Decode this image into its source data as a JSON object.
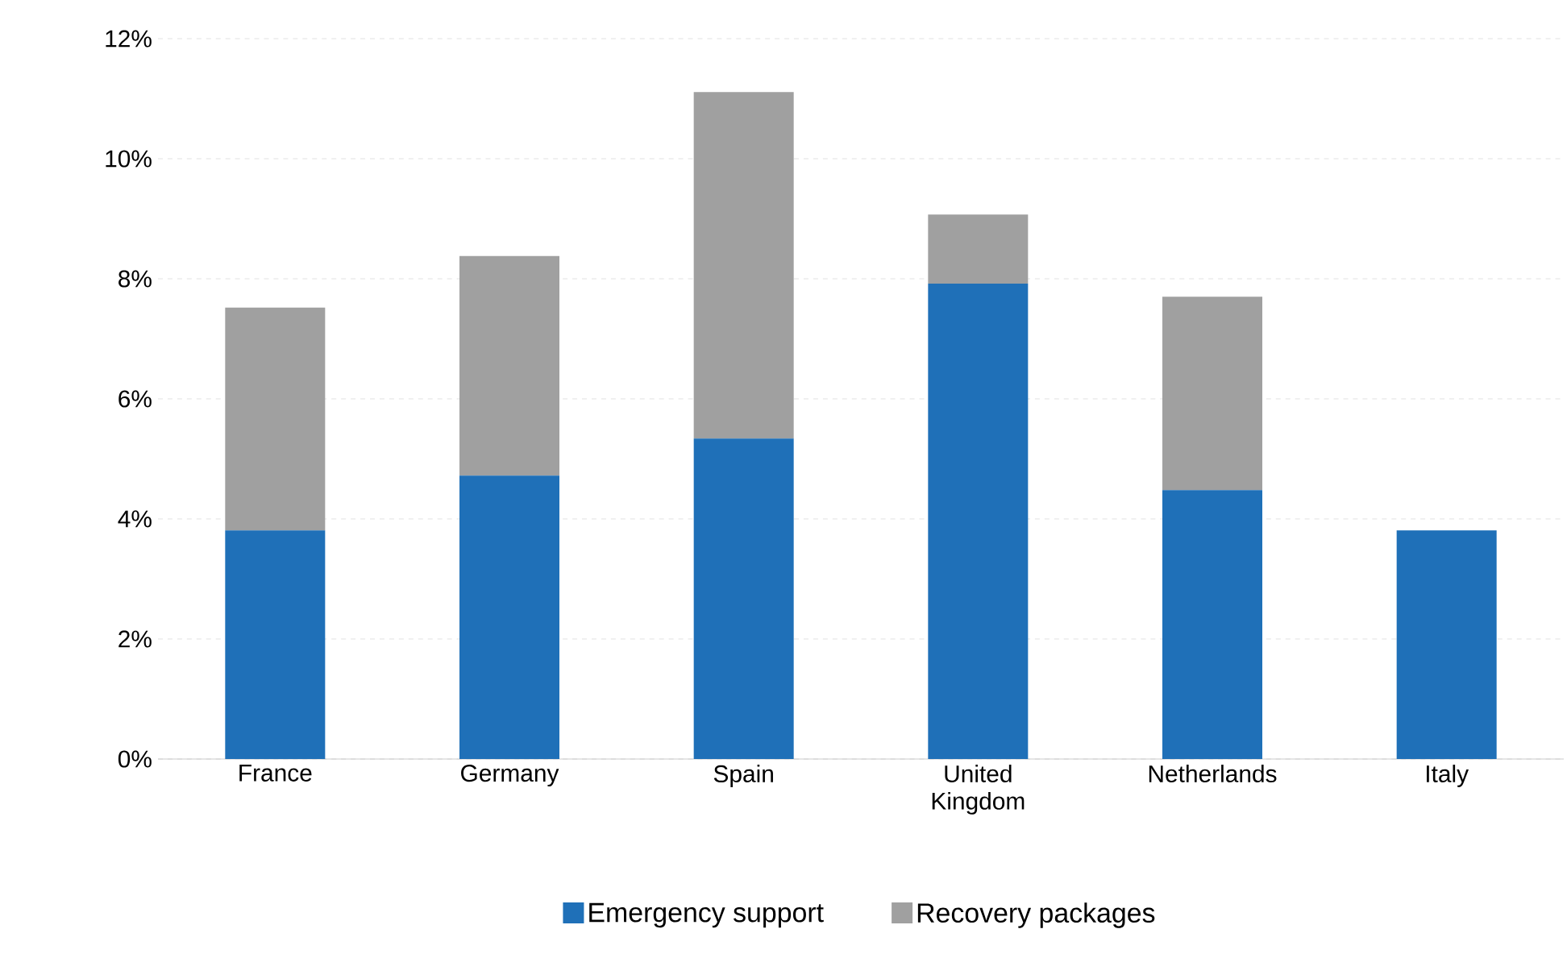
{
  "chart_data": {
    "type": "bar",
    "stacked": true,
    "categories": [
      "France",
      "Germany",
      "Spain",
      "United Kingdom",
      "Netherlands",
      "Italy"
    ],
    "series": [
      {
        "name": "Emergency support",
        "color": "#1f70b8",
        "values": [
          3.81,
          4.72,
          5.34,
          7.92,
          4.48,
          3.81
        ]
      },
      {
        "name": "Recovery packages",
        "color": "#a0a0a0",
        "values": [
          3.71,
          3.66,
          5.77,
          1.15,
          3.22,
          0
        ]
      }
    ],
    "ylim": [
      0,
      12
    ],
    "yticks": [
      {
        "value": 0,
        "label": "0%"
      },
      {
        "value": 2,
        "label": "2%"
      },
      {
        "value": 4,
        "label": "4%"
      },
      {
        "value": 6,
        "label": "6%"
      },
      {
        "value": 8,
        "label": "8%"
      },
      {
        "value": 10,
        "label": "10%"
      },
      {
        "value": 12,
        "label": "12%"
      }
    ],
    "grid": "y",
    "legend": "bottom"
  }
}
